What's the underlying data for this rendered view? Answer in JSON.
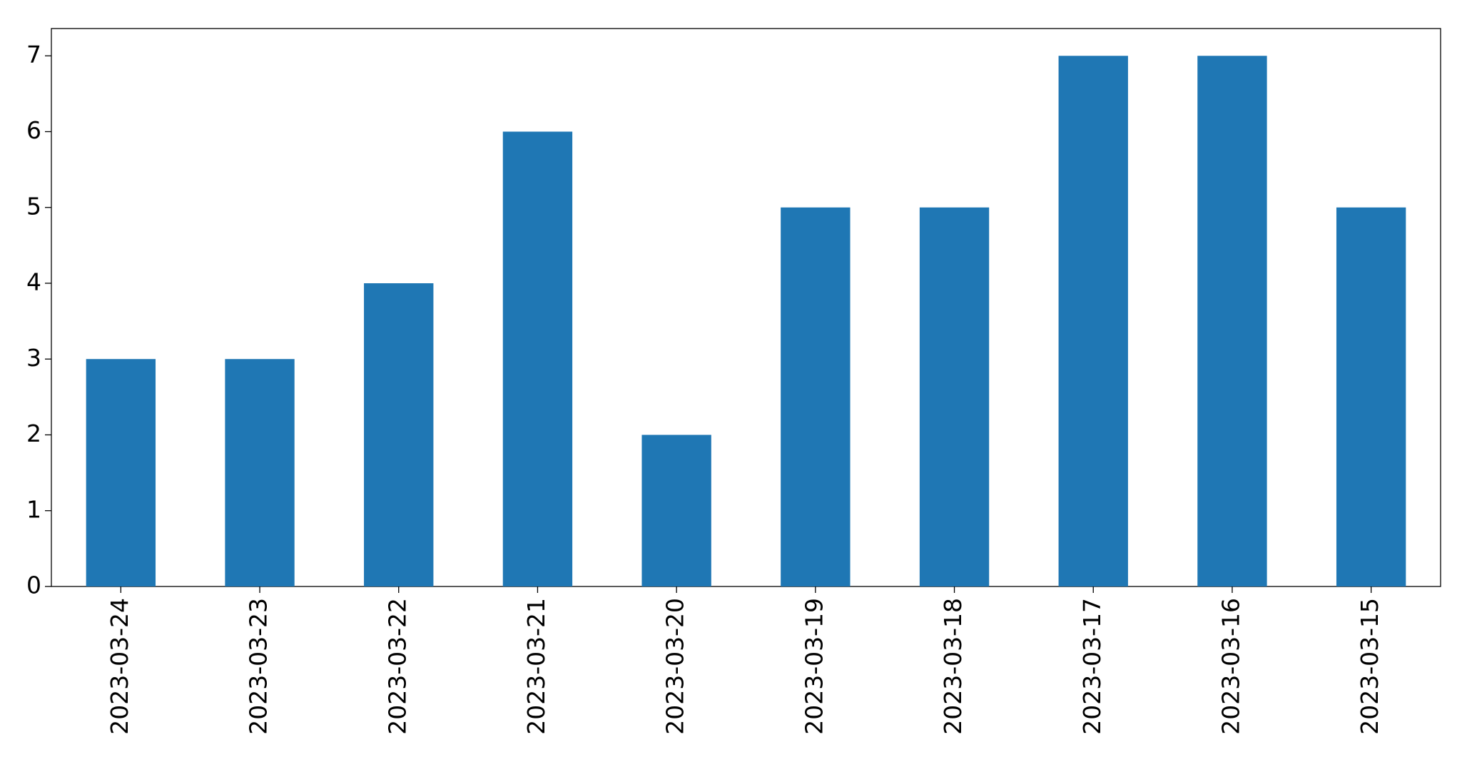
{
  "chart_data": {
    "type": "bar",
    "categories": [
      "2023-03-24",
      "2023-03-23",
      "2023-03-22",
      "2023-03-21",
      "2023-03-20",
      "2023-03-19",
      "2023-03-18",
      "2023-03-17",
      "2023-03-16",
      "2023-03-15"
    ],
    "values": [
      3,
      3,
      4,
      6,
      2,
      5,
      5,
      7,
      7,
      5
    ],
    "color": "#1f77b4",
    "ylim": [
      0,
      7.36
    ],
    "yticks": [
      0,
      1,
      2,
      3,
      4,
      5,
      6,
      7
    ],
    "grid": false
  }
}
